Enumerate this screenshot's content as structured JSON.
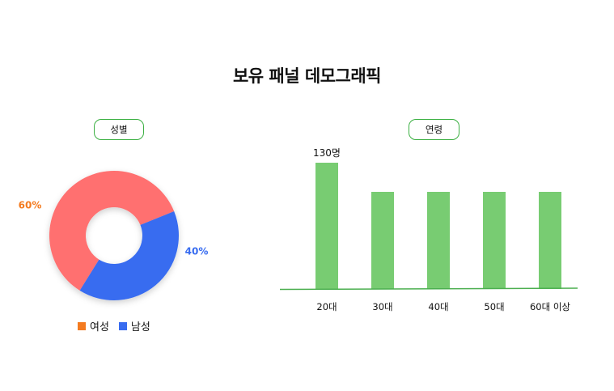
{
  "page": {
    "title": "보유 패널 데모그래픽"
  },
  "gender_panel": {
    "label": "성별"
  },
  "age_panel": {
    "label": "연령"
  },
  "colors": {
    "female": "#ff7070",
    "male": "#386cf0",
    "female_label": "#f47b20",
    "bar": "#78cc72",
    "axis": "#4caf50",
    "pill_border": "#3cb043"
  },
  "chart_data": [
    {
      "type": "pie",
      "donut": true,
      "labels": [
        "여성",
        "남성"
      ],
      "values": [
        60,
        40
      ],
      "value_labels": [
        "60%",
        "40%"
      ],
      "legend": [
        "여성",
        "남성"
      ],
      "legend_position": "bottom"
    },
    {
      "type": "bar",
      "categories": [
        "20대",
        "30대",
        "40대",
        "50대",
        "60대 이상"
      ],
      "values": [
        130,
        100,
        100,
        100,
        100
      ],
      "data_labels": [
        "130명",
        "",
        "",
        "",
        ""
      ],
      "grid": false
    }
  ]
}
